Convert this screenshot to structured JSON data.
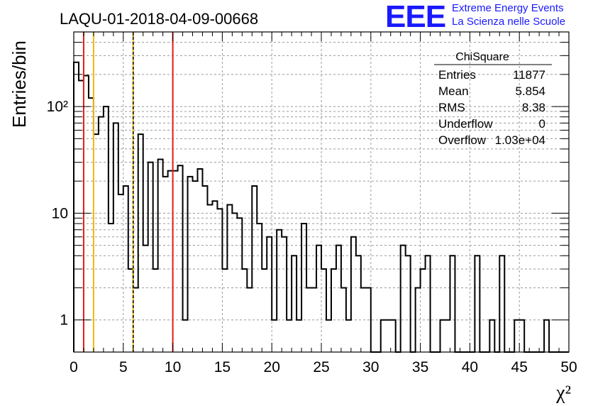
{
  "header": {
    "run_title": "LAQU-01-2018-04-09-00668",
    "logo_mark": "EEE",
    "logo_line1": "Extreme Energy Events",
    "logo_line2": "La Scienza nelle Scuole",
    "brand_color": "#1a1aff"
  },
  "stats_box": {
    "title": "ChiSquare",
    "rows": [
      {
        "label": "Entries",
        "value": "11877"
      },
      {
        "label": "Mean",
        "value": "5.854"
      },
      {
        "label": "RMS",
        "value": "8.38"
      },
      {
        "label": "Underflow",
        "value": "0"
      },
      {
        "label": "Overflow",
        "value": "1.03e+04"
      }
    ]
  },
  "chart_data": {
    "type": "histogram",
    "title": "LAQU-01-2018-04-09-00668",
    "xlabel": "χ²",
    "ylabel": "Entries/bin",
    "xlim": [
      0,
      50
    ],
    "ylim": [
      0.5,
      500
    ],
    "yscale": "log",
    "grid": true,
    "bin_width": 0.5,
    "x_ticks": [
      0,
      5,
      10,
      15,
      20,
      25,
      30,
      35,
      40,
      45,
      50
    ],
    "y_ticks": [
      {
        "value": 1,
        "label": "1"
      },
      {
        "value": 10,
        "label": "10"
      },
      {
        "value": 100,
        "label": "10²"
      }
    ],
    "counts": [
      260,
      175,
      195,
      120,
      55,
      80,
      100,
      8,
      70,
      15,
      18,
      3,
      2,
      55,
      5,
      30,
      3,
      32,
      22,
      25,
      25,
      28,
      1,
      22,
      20,
      26,
      18,
      12,
      13,
      11,
      3,
      12,
      10,
      9,
      3,
      2,
      18,
      8,
      3,
      6,
      1,
      7,
      6,
      1,
      4,
      1,
      8,
      2,
      2,
      5,
      3,
      1,
      3,
      5,
      2,
      1,
      6,
      4,
      2,
      2,
      0,
      0,
      1,
      1,
      1,
      0,
      5,
      4,
      0,
      2,
      3,
      4,
      0,
      0,
      1,
      1,
      4,
      0,
      0,
      0,
      0,
      4,
      0,
      0,
      1,
      0,
      4,
      0,
      0,
      1,
      1,
      0,
      0,
      0,
      0,
      1,
      0,
      0,
      0,
      0
    ],
    "vertical_lines": [
      {
        "x": 1,
        "color": "#e21b1b",
        "style": "solid"
      },
      {
        "x": 2,
        "color": "#f2b90c",
        "style": "solid"
      },
      {
        "x": 6,
        "color": "#f2b90c",
        "style": "solid"
      },
      {
        "x": 6,
        "color": "#000000",
        "style": "dashed"
      },
      {
        "x": 10,
        "color": "#e21b1b",
        "style": "solid"
      }
    ]
  }
}
